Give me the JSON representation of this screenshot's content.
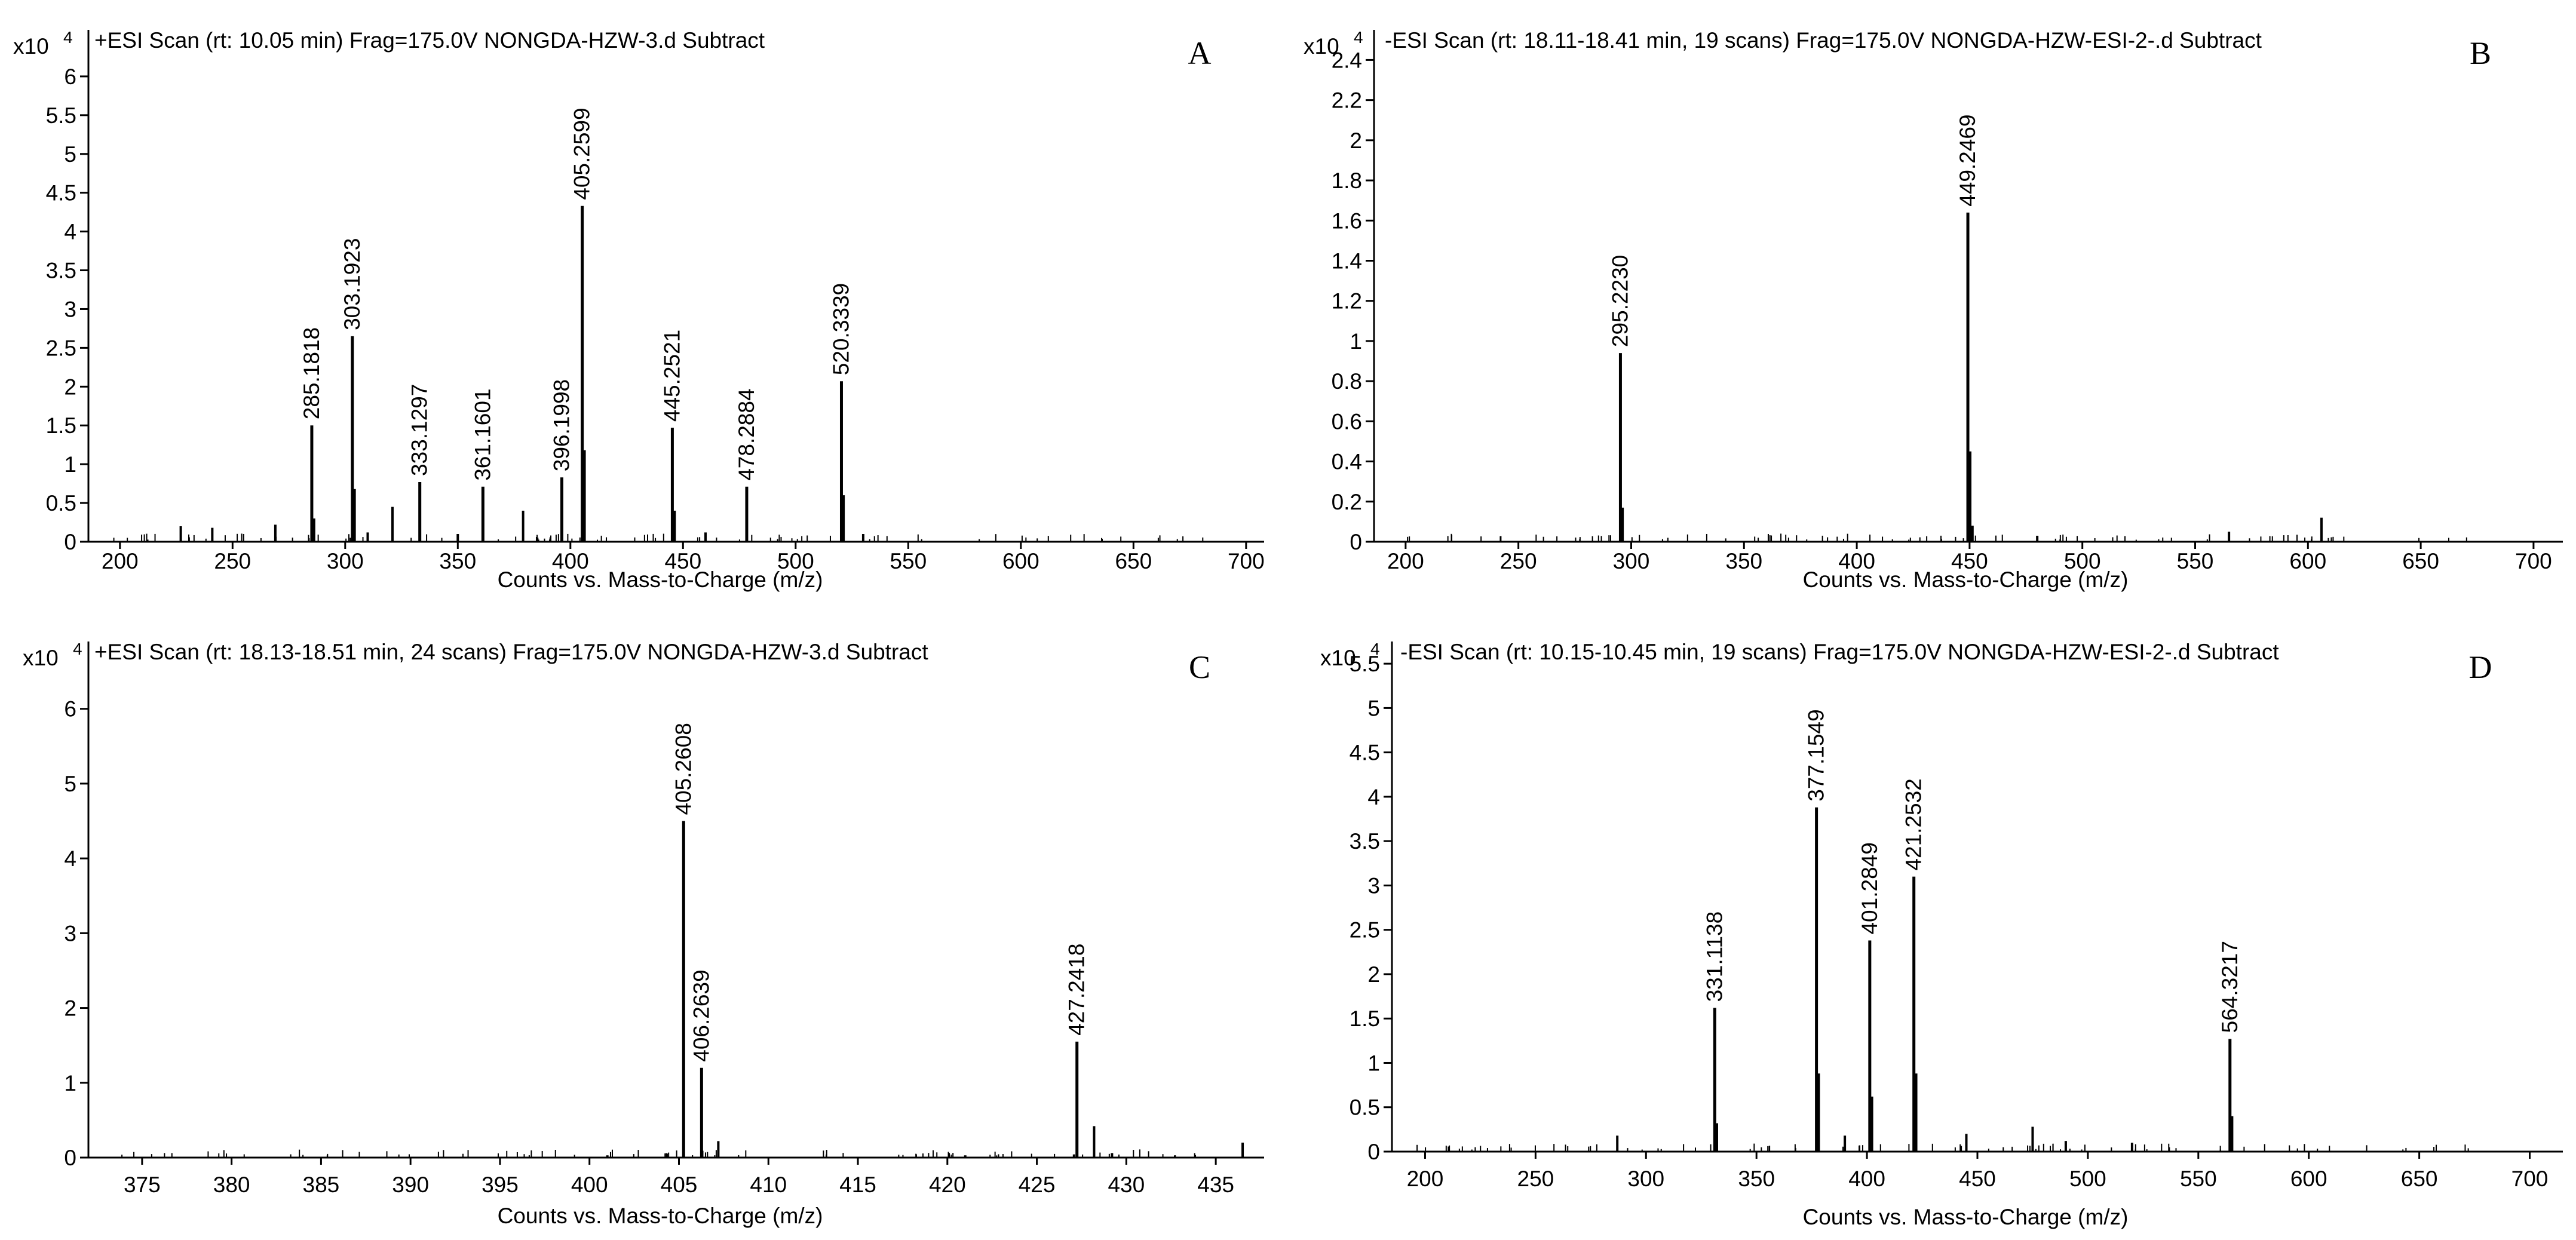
{
  "chart_data": [
    {
      "type": "bar",
      "panel_letter": "A",
      "title": "+ESI Scan (rt: 10.05 min) Frag=175.0V NONGDA-HZW-3.d  Subtract",
      "multiplier": "x10",
      "multiplier_exp": "4",
      "xlabel": "Counts vs. Mass-to-Charge (m/z)",
      "xlim": [
        186,
        708
      ],
      "ylim": [
        0,
        6.6
      ],
      "xticks": [
        200,
        250,
        300,
        350,
        400,
        450,
        500,
        550,
        600,
        650,
        700
      ],
      "yticks": [
        0,
        0.5,
        1,
        1.5,
        2,
        2.5,
        3,
        3.5,
        4,
        4.5,
        5,
        5.5,
        6
      ],
      "labeled_peaks": [
        {
          "mz": 285.1818,
          "intensity": 1.5,
          "label": "285.1818"
        },
        {
          "mz": 303.1923,
          "intensity": 2.65,
          "label": "303.1923"
        },
        {
          "mz": 333.1297,
          "intensity": 0.77,
          "label": "333.1297"
        },
        {
          "mz": 361.1601,
          "intensity": 0.71,
          "label": "361.1601"
        },
        {
          "mz": 396.1998,
          "intensity": 0.83,
          "label": "396.1998"
        },
        {
          "mz": 405.2599,
          "intensity": 4.33,
          "label": "405.2599"
        },
        {
          "mz": 445.2521,
          "intensity": 1.47,
          "label": "445.2521"
        },
        {
          "mz": 478.2884,
          "intensity": 0.71,
          "label": "478.2884"
        },
        {
          "mz": 520.3339,
          "intensity": 2.07,
          "label": "520.3339"
        }
      ],
      "minor_peaks": [
        {
          "mz": 286.2,
          "intensity": 0.3
        },
        {
          "mz": 304.2,
          "intensity": 0.68
        },
        {
          "mz": 321.0,
          "intensity": 0.45
        },
        {
          "mz": 379.0,
          "intensity": 0.4
        },
        {
          "mz": 406.3,
          "intensity": 1.18
        },
        {
          "mz": 446.3,
          "intensity": 0.4
        },
        {
          "mz": 521.3,
          "intensity": 0.6
        },
        {
          "mz": 269.0,
          "intensity": 0.22
        },
        {
          "mz": 227.0,
          "intensity": 0.2
        },
        {
          "mz": 241.0,
          "intensity": 0.18
        },
        {
          "mz": 310.0,
          "intensity": 0.12
        },
        {
          "mz": 350.0,
          "intensity": 0.1
        },
        {
          "mz": 460.0,
          "intensity": 0.12
        },
        {
          "mz": 530.0,
          "intensity": 0.1
        }
      ]
    },
    {
      "type": "bar",
      "panel_letter": "B",
      "title": "-ESI Scan (rt: 18.11-18.41 min, 19 scans) Frag=175.0V NONGDA-HZW-ESI-2-.d  Subtract",
      "multiplier": "x10",
      "multiplier_exp": "4",
      "xlabel": "Counts vs. Mass-to-Charge (m/z)",
      "xlim": [
        186,
        713
      ],
      "ylim": [
        0,
        2.55
      ],
      "xticks": [
        200,
        250,
        300,
        350,
        400,
        450,
        500,
        550,
        600,
        650,
        700
      ],
      "yticks": [
        0,
        0.2,
        0.4,
        0.6,
        0.8,
        1,
        1.2,
        1.4,
        1.6,
        1.8,
        2,
        2.2,
        2.4
      ],
      "labeled_peaks": [
        {
          "mz": 295.223,
          "intensity": 0.94,
          "label": "295.2230"
        },
        {
          "mz": 449.2469,
          "intensity": 1.64,
          "label": "449.2469"
        }
      ],
      "minor_peaks": [
        {
          "mz": 296.2,
          "intensity": 0.17
        },
        {
          "mz": 450.3,
          "intensity": 0.45
        },
        {
          "mz": 451.3,
          "intensity": 0.08
        },
        {
          "mz": 606.0,
          "intensity": 0.12
        },
        {
          "mz": 565.0,
          "intensity": 0.05
        },
        {
          "mz": 480.0,
          "intensity": 0.03
        }
      ]
    },
    {
      "type": "bar",
      "panel_letter": "C",
      "title": "+ESI Scan (rt: 18.13-18.51 min, 24 scans) Frag=175.0V NONGDA-HZW-3.d  Subtract",
      "multiplier": "x10",
      "multiplier_exp": "4",
      "xlabel": "Counts vs. Mass-to-Charge (m/z)",
      "xlim": [
        372,
        437.7
      ],
      "ylim": [
        0,
        6.9
      ],
      "xticks": [
        375,
        380,
        385,
        390,
        395,
        400,
        405,
        410,
        415,
        420,
        425,
        430,
        435
      ],
      "yticks": [
        0,
        1,
        2,
        3,
        4,
        5,
        6
      ],
      "labeled_peaks": [
        {
          "mz": 405.2608,
          "intensity": 4.5,
          "label": "405.2608"
        },
        {
          "mz": 406.2639,
          "intensity": 1.2,
          "label": "406.2639"
        },
        {
          "mz": 427.2418,
          "intensity": 1.55,
          "label": "427.2418"
        }
      ],
      "minor_peaks": [
        {
          "mz": 407.2,
          "intensity": 0.22
        },
        {
          "mz": 428.2,
          "intensity": 0.42
        },
        {
          "mz": 436.5,
          "intensity": 0.2
        },
        {
          "mz": 429.2,
          "intensity": 0.06
        },
        {
          "mz": 421.0,
          "intensity": 0.03
        },
        {
          "mz": 401.0,
          "intensity": 0.03
        }
      ]
    },
    {
      "type": "bar",
      "panel_letter": "D",
      "title": "-ESI Scan (rt: 10.15-10.45 min, 19 scans) Frag=175.0V NONGDA-HZW-ESI-2-.d  Subtract",
      "multiplier": "x10",
      "multiplier_exp": "4",
      "xlabel": "Counts vs. Mass-to-Charge (m/z)",
      "xlim": [
        185,
        715
      ],
      "ylim": [
        0,
        5.75
      ],
      "xticks": [
        200,
        250,
        300,
        350,
        400,
        450,
        500,
        550,
        600,
        650,
        700
      ],
      "yticks": [
        0,
        0.5,
        1,
        1.5,
        2,
        2.5,
        3,
        3.5,
        4,
        4.5,
        5,
        5.5
      ],
      "labeled_peaks": [
        {
          "mz": 331.1138,
          "intensity": 1.62,
          "label": "331.1138"
        },
        {
          "mz": 377.1549,
          "intensity": 3.88,
          "label": "377.1549"
        },
        {
          "mz": 401.2849,
          "intensity": 2.38,
          "label": "401.2849"
        },
        {
          "mz": 421.2532,
          "intensity": 3.1,
          "label": "421.2532"
        },
        {
          "mz": 564.3217,
          "intensity": 1.27,
          "label": "564.3217"
        }
      ],
      "minor_peaks": [
        {
          "mz": 378.2,
          "intensity": 0.88
        },
        {
          "mz": 422.3,
          "intensity": 0.88
        },
        {
          "mz": 402.3,
          "intensity": 0.62
        },
        {
          "mz": 332.1,
          "intensity": 0.32
        },
        {
          "mz": 565.3,
          "intensity": 0.4
        },
        {
          "mz": 287.0,
          "intensity": 0.18
        },
        {
          "mz": 475.0,
          "intensity": 0.28
        },
        {
          "mz": 445.0,
          "intensity": 0.2
        },
        {
          "mz": 390.0,
          "intensity": 0.18
        },
        {
          "mz": 490.0,
          "intensity": 0.12
        },
        {
          "mz": 520.0,
          "intensity": 0.1
        }
      ]
    }
  ]
}
